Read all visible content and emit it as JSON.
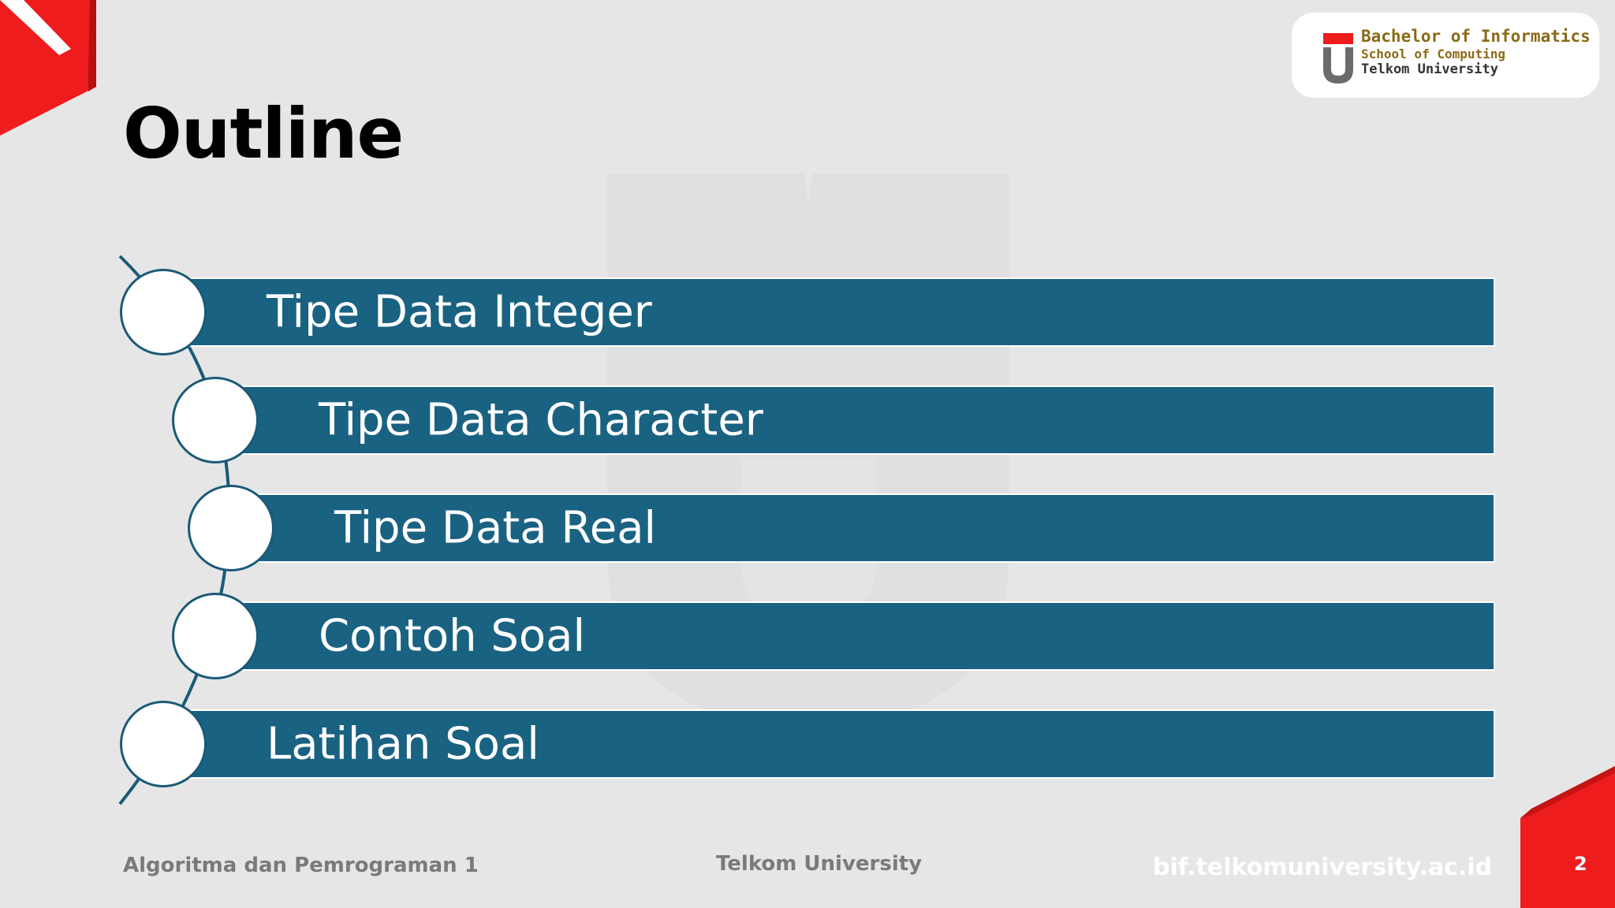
{
  "slide": {
    "title": "Outline",
    "items": [
      {
        "label": "Tipe Data Integer"
      },
      {
        "label": "Tipe Data Character"
      },
      {
        "label": "Tipe Data Real"
      },
      {
        "label": "Contoh Soal"
      },
      {
        "label": "Latihan Soal"
      }
    ]
  },
  "logo": {
    "line1": "Bachelor of Informatics",
    "line2": "School of Computing",
    "line3": "Telkom University"
  },
  "footer": {
    "left": "Algoritma dan Pemrograman 1",
    "center": "Telkom University",
    "right": "bif.telkomuniversity.ac.id",
    "page_number": "2"
  },
  "colors": {
    "background": "#e6e6e6",
    "bar": "#1a6282",
    "accent_red": "#ee1c1c",
    "logo_gold": "#8a6a16"
  }
}
